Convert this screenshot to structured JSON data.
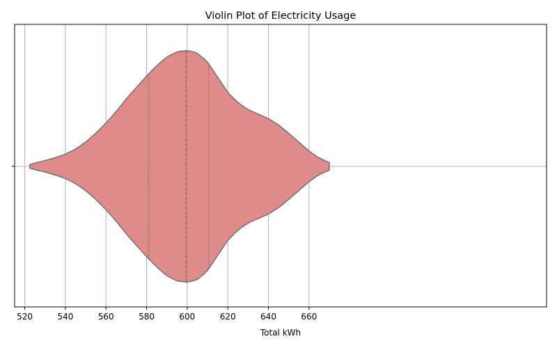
{
  "chart_data": {
    "type": "violin",
    "title": "Violin Plot of Electricity Usage",
    "xlabel": "Total kWh",
    "ylabel": "",
    "xlim": [
      515,
      777
    ],
    "xticks": [
      520,
      540,
      560,
      580,
      600,
      620,
      640,
      660
    ],
    "xtick_labels": [
      "520",
      "540",
      "560",
      "580",
      "600",
      "620",
      "640",
      "660"
    ],
    "grid": true,
    "orientation": "horizontal",
    "colors": {
      "fill": "#e08b8b",
      "edge": "#6b6b6b",
      "grid": "#b0b0b0"
    },
    "violin": {
      "min": 522.5,
      "max": 670,
      "quartiles": {
        "q1": 581,
        "median": 599.5,
        "q3": 610.5
      },
      "density_profile": [
        [
          522.5,
          0.015
        ],
        [
          525,
          0.026
        ],
        [
          530,
          0.045
        ],
        [
          535,
          0.068
        ],
        [
          540,
          0.095
        ],
        [
          545,
          0.135
        ],
        [
          550,
          0.19
        ],
        [
          555,
          0.26
        ],
        [
          560,
          0.34
        ],
        [
          565,
          0.43
        ],
        [
          570,
          0.53
        ],
        [
          575,
          0.62
        ],
        [
          580,
          0.71
        ],
        [
          585,
          0.79
        ],
        [
          590,
          0.86
        ],
        [
          595,
          0.9
        ],
        [
          600,
          0.91
        ],
        [
          605,
          0.89
        ],
        [
          610,
          0.82
        ],
        [
          615,
          0.7
        ],
        [
          620,
          0.58
        ],
        [
          625,
          0.5
        ],
        [
          630,
          0.445
        ],
        [
          635,
          0.41
        ],
        [
          640,
          0.375
        ],
        [
          645,
          0.325
        ],
        [
          650,
          0.26
        ],
        [
          655,
          0.19
        ],
        [
          660,
          0.12
        ],
        [
          665,
          0.065
        ],
        [
          670,
          0.03
        ]
      ]
    }
  }
}
